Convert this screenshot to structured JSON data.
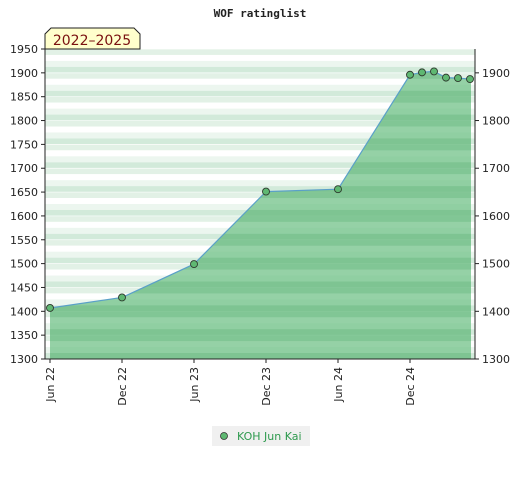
{
  "chart_data": {
    "type": "area",
    "title": "WOF ratinglist",
    "badge": "2022–2025",
    "xlabel": "",
    "ylabel": "",
    "ylim": [
      1300,
      1950
    ],
    "y_ticks_left": [
      "1950",
      "1900",
      "1850",
      "1800",
      "1750",
      "1700",
      "1650",
      "1600",
      "1550",
      "1500",
      "1450",
      "1400",
      "1350",
      "1300"
    ],
    "y_ticks_right": [
      "1900",
      "1800",
      "1700",
      "1600",
      "1500",
      "1400",
      "1300"
    ],
    "x_ticks": [
      "Jun 22",
      "Dec 22",
      "Jun 23",
      "Dec 23",
      "Jun 24",
      "Dec 24"
    ],
    "grid": true,
    "legend_position": "bottom-center",
    "series": [
      {
        "name": "KOH Jun Kai",
        "color": "#5aa0c8",
        "fill": "#6cbf84",
        "marker_color": "#5fb872",
        "x": [
          "2022-06",
          "2022-12",
          "2023-06",
          "2023-12",
          "2024-06",
          "2024-12",
          "2025-01",
          "2025-02",
          "2025-03",
          "2025-04",
          "2025-05"
        ],
        "values": [
          1407,
          1429,
          1499,
          1651,
          1656,
          1896,
          1901,
          1903,
          1890,
          1889,
          1887
        ]
      }
    ]
  }
}
